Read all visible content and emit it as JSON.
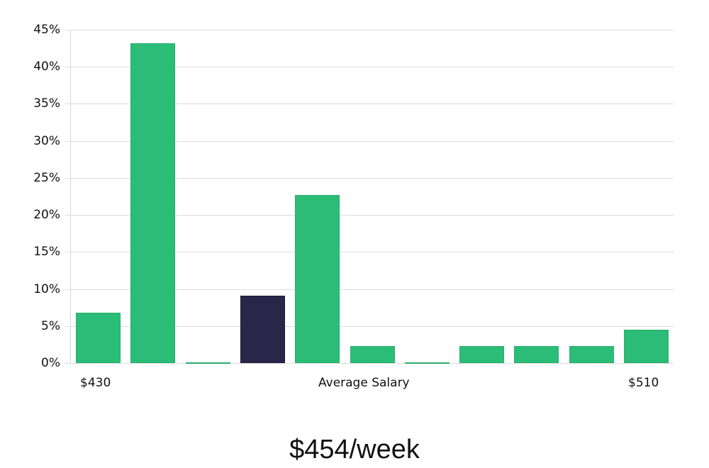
{
  "chart_data": {
    "type": "bar",
    "title": "",
    "xlabel": "Average Salary",
    "ylabel": "",
    "ylim": [
      0,
      45
    ],
    "y_ticks": [
      "0%",
      "5%",
      "10%",
      "15%",
      "20%",
      "25%",
      "30%",
      "35%",
      "40%",
      "45%"
    ],
    "x_tick_labels": {
      "left": "$430",
      "center": "Average Salary",
      "right": "$510"
    },
    "grid": true,
    "legend": null,
    "categories": [
      "bin1",
      "bin2",
      "bin3",
      "bin4",
      "bin5",
      "bin6",
      "bin7",
      "bin8",
      "bin9",
      "bin10",
      "bin11"
    ],
    "values": [
      6.8,
      43.2,
      0,
      9.1,
      22.7,
      2.3,
      0,
      2.3,
      2.3,
      2.3,
      4.5
    ],
    "highlight_index": 3,
    "colors": {
      "bar": "#2bbd77",
      "highlight": "#29264a",
      "grid": "#dcdcdc"
    },
    "annotation": "$454/week"
  },
  "axis": {
    "y_labels": [
      "0%",
      "5%",
      "10%",
      "15%",
      "20%",
      "25%",
      "30%",
      "35%",
      "40%",
      "45%"
    ],
    "x_left": "$430",
    "x_center": "Average Salary",
    "x_right": "$510"
  },
  "caption": "$454/week"
}
